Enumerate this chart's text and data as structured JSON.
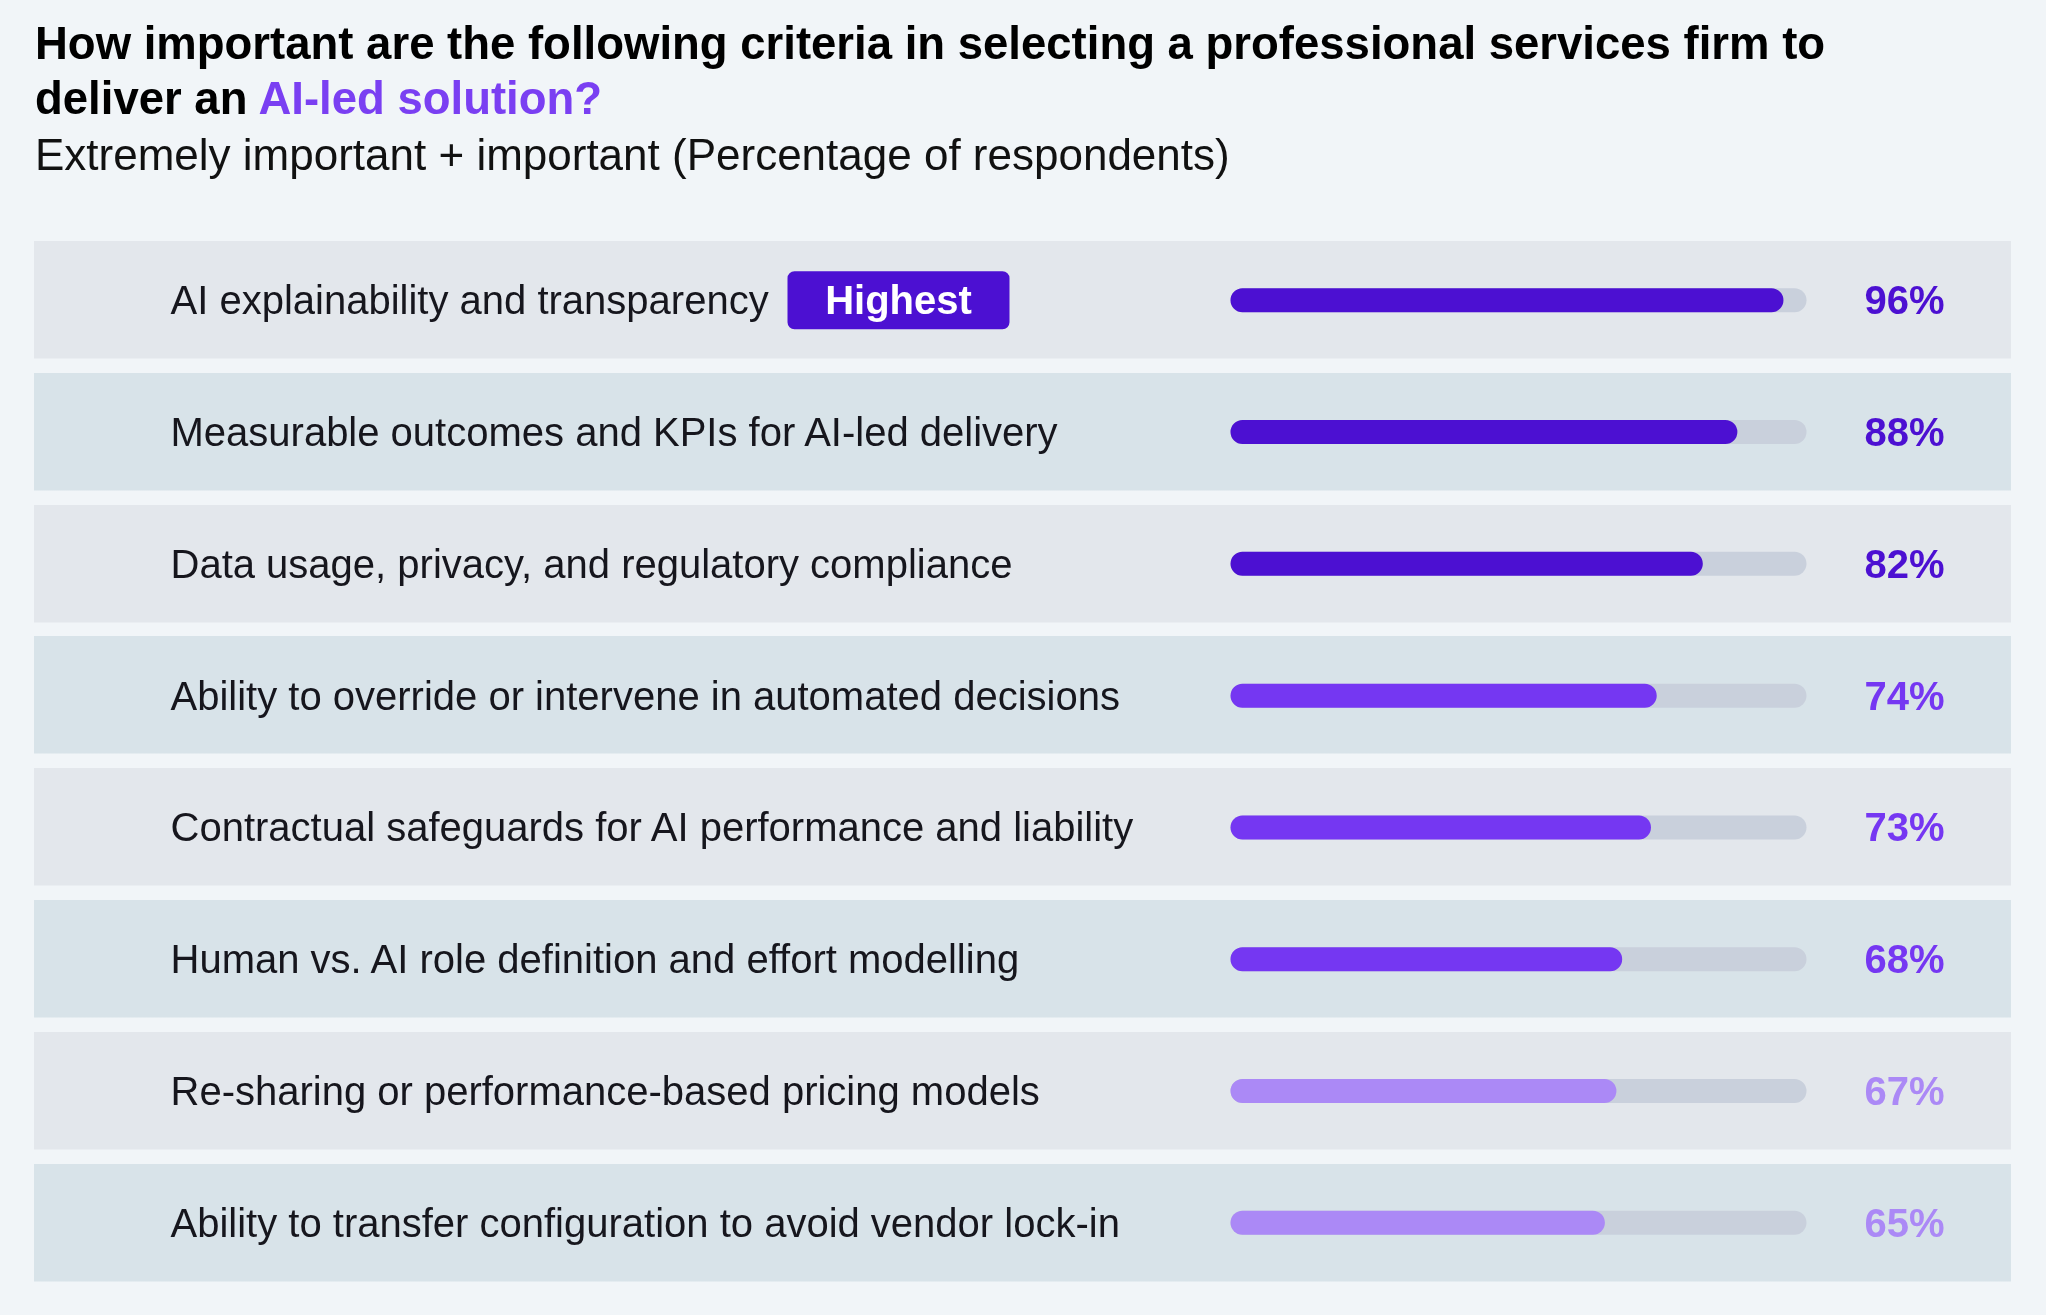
{
  "chart_data": {
    "type": "bar",
    "orientation": "horizontal",
    "title": "How important are the following criteria in selecting a professional services firm to deliver an AI-led solution?",
    "subtitle": "Extremely important + important (Percentage of respondents)",
    "categories": [
      "AI explainability and transparency",
      "Measurable outcomes and KPIs for AI-led delivery",
      "Data usage, privacy, and regulatory compliance",
      "Ability to override or intervene in automated decisions",
      "Contractual safeguards for AI performance and liability",
      "Human vs. AI role definition and effort modelling",
      "Re-sharing or performance-based pricing models",
      "Ability to transfer configuration to avoid vendor lock-in"
    ],
    "values": [
      96,
      88,
      82,
      74,
      73,
      68,
      67,
      65
    ],
    "colors": [
      "#4c10d2",
      "#4c10d2",
      "#4c10d2",
      "#7537f2",
      "#7537f2",
      "#7537f2",
      "#ab89f6",
      "#ab89f6"
    ],
    "value_labels": [
      "96%",
      "88%",
      "82%",
      "74%",
      "73%",
      "68%",
      "67%",
      "65%"
    ],
    "xlim": [
      0,
      100
    ],
    "tick_labels": "y",
    "annotations": [
      "Highest"
    ]
  }
}
